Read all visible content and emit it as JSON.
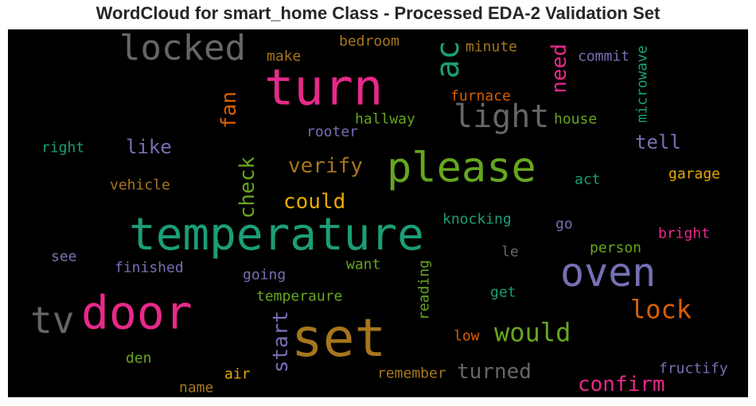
{
  "chart_data": {
    "type": "wordcloud",
    "title": "WordCloud for smart_home Class - Processed EDA-2 Validation Set",
    "background": "#000000",
    "words": [
      {
        "text": "temperature",
        "color": "#1b9e77"
      },
      {
        "text": "turn",
        "color": "#e7298a"
      },
      {
        "text": "set",
        "color": "#a6761d"
      },
      {
        "text": "door",
        "color": "#e7298a"
      },
      {
        "text": "please",
        "color": "#66a61e"
      },
      {
        "text": "oven",
        "color": "#7570b3"
      },
      {
        "text": "locked",
        "color": "#666666"
      },
      {
        "text": "light",
        "color": "#666666"
      },
      {
        "text": "tv",
        "color": "#666666"
      },
      {
        "text": "ac",
        "color": "#1b9e77"
      },
      {
        "text": "lock",
        "color": "#d95f02"
      },
      {
        "text": "would",
        "color": "#66a61e"
      },
      {
        "text": "turned",
        "color": "#666666"
      },
      {
        "text": "confirm",
        "color": "#e7298a"
      },
      {
        "text": "could",
        "color": "#e6ab02"
      },
      {
        "text": "verify",
        "color": "#a6761d"
      },
      {
        "text": "check",
        "color": "#66a61e"
      },
      {
        "text": "start",
        "color": "#7570b3"
      },
      {
        "text": "need",
        "color": "#e7298a"
      },
      {
        "text": "fan",
        "color": "#d95f02"
      },
      {
        "text": "like",
        "color": "#7570b3"
      },
      {
        "text": "tell",
        "color": "#7570b3"
      },
      {
        "text": "bedroom",
        "color": "#a6761d"
      },
      {
        "text": "make",
        "color": "#a6761d"
      },
      {
        "text": "minute",
        "color": "#a6761d"
      },
      {
        "text": "commit",
        "color": "#7570b3"
      },
      {
        "text": "microwave",
        "color": "#1b9e77"
      },
      {
        "text": "furnace",
        "color": "#d95f02"
      },
      {
        "text": "hallway",
        "color": "#66a61e"
      },
      {
        "text": "rooter",
        "color": "#7570b3"
      },
      {
        "text": "house",
        "color": "#66a61e"
      },
      {
        "text": "right",
        "color": "#1b9e77"
      },
      {
        "text": "vehicle",
        "color": "#a6761d"
      },
      {
        "text": "garage",
        "color": "#e6ab02"
      },
      {
        "text": "act",
        "color": "#1b9e77"
      },
      {
        "text": "knocking",
        "color": "#1b9e77"
      },
      {
        "text": "go",
        "color": "#7570b3"
      },
      {
        "text": "bright",
        "color": "#e7298a"
      },
      {
        "text": "see",
        "color": "#7570b3"
      },
      {
        "text": "finished",
        "color": "#7570b3"
      },
      {
        "text": "want",
        "color": "#66a61e"
      },
      {
        "text": "le",
        "color": "#666666"
      },
      {
        "text": "person",
        "color": "#66a61e"
      },
      {
        "text": "going",
        "color": "#7570b3"
      },
      {
        "text": "reading",
        "color": "#66a61e"
      },
      {
        "text": "get",
        "color": "#1b9e77"
      },
      {
        "text": "temperaure",
        "color": "#66a61e"
      },
      {
        "text": "low",
        "color": "#d95f02"
      },
      {
        "text": "den",
        "color": "#66a61e"
      },
      {
        "text": "remember",
        "color": "#a6761d"
      },
      {
        "text": "fructify",
        "color": "#7570b3"
      },
      {
        "text": "air",
        "color": "#e6ab02"
      },
      {
        "text": "name",
        "color": "#a6761d"
      }
    ]
  }
}
